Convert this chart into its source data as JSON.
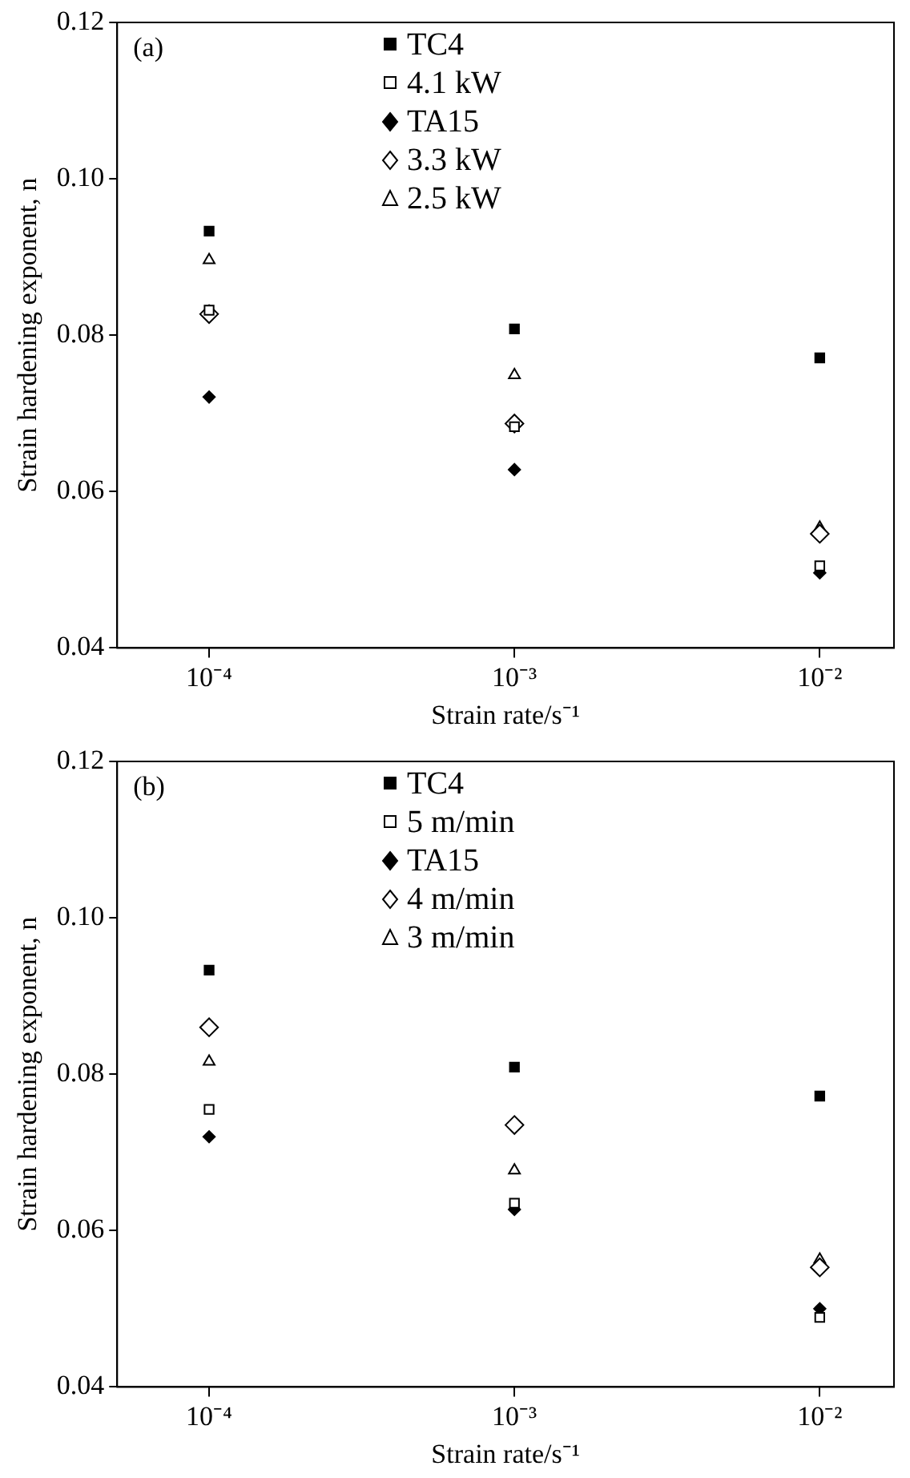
{
  "chart_data": [
    {
      "type": "scatter",
      "annotations": [
        "(a)"
      ],
      "xlabel": "Strain rate/s⁻¹",
      "ylabel": "Strain hardening exponent, n",
      "x": [
        0.0001,
        0.001,
        0.01
      ],
      "log": "x",
      "xlim": [
        5e-05,
        0.0175
      ],
      "xticks": [
        {
          "value": 0.0001,
          "label": "10⁻⁴"
        },
        {
          "value": 0.001,
          "label": "10⁻³"
        },
        {
          "value": 0.01,
          "label": "10⁻²"
        }
      ],
      "ylim": [
        0.04,
        0.12
      ],
      "yticks": [
        {
          "value": 0.04,
          "label": "0.04"
        },
        {
          "value": 0.06,
          "label": "0.06"
        },
        {
          "value": 0.08,
          "label": "0.08"
        },
        {
          "value": 0.1,
          "label": "0.10"
        },
        {
          "value": 0.12,
          "label": "0.12"
        }
      ],
      "grid": false,
      "legend": "top",
      "series": [
        {
          "name": "TC4",
          "color": "#000000",
          "marker": "square",
          "values": [
            0.0933,
            0.0808,
            0.0771
          ]
        },
        {
          "name": "4.1 kW",
          "color": "#000000",
          "marker": "square",
          "values": [
            0.0832,
            0.0683,
            0.0505
          ]
        },
        {
          "name": "TA15",
          "color": "#000000",
          "marker": "diamond",
          "values": [
            0.0721,
            0.0628,
            0.0496
          ]
        },
        {
          "name": "3.3 kW",
          "color": "#000000",
          "marker": "diamond",
          "values": [
            0.0827,
            0.0687,
            0.0546
          ]
        },
        {
          "name": "2.5 kW",
          "color": "#000000",
          "marker": "triangle",
          "values": [
            0.0896,
            0.0749,
            0.0554
          ]
        }
      ]
    },
    {
      "type": "scatter",
      "annotations": [
        "(b)"
      ],
      "xlabel": "Strain rate/s⁻¹",
      "ylabel": "Strain hardening exponent, n",
      "x": [
        0.0001,
        0.001,
        0.01
      ],
      "log": "x",
      "xlim": [
        5e-05,
        0.0175
      ],
      "xticks": [
        {
          "value": 0.0001,
          "label": "10⁻⁴"
        },
        {
          "value": 0.001,
          "label": "10⁻³"
        },
        {
          "value": 0.01,
          "label": "10⁻²"
        }
      ],
      "ylim": [
        0.04,
        0.12
      ],
      "yticks": [
        {
          "value": 0.04,
          "label": "0.04"
        },
        {
          "value": 0.06,
          "label": "0.06"
        },
        {
          "value": 0.08,
          "label": "0.08"
        },
        {
          "value": 0.1,
          "label": "0.10"
        },
        {
          "value": 0.12,
          "label": "0.12"
        }
      ],
      "grid": false,
      "legend": "top",
      "series": [
        {
          "name": "TC4",
          "color": "#000000",
          "marker": "square",
          "values": [
            0.0933,
            0.0809,
            0.0772
          ]
        },
        {
          "name": "5 m/min",
          "color": "#000000",
          "marker": "square",
          "values": [
            0.0755,
            0.0635,
            0.0489
          ]
        },
        {
          "name": "TA15",
          "color": "#000000",
          "marker": "diamond",
          "values": [
            0.072,
            0.0627,
            0.05
          ]
        },
        {
          "name": "4 m/min",
          "color": "#000000",
          "marker": "diamond",
          "values": [
            0.086,
            0.0735,
            0.0553
          ]
        },
        {
          "name": "3 m/min",
          "color": "#000000",
          "marker": "triangle",
          "values": [
            0.0816,
            0.0677,
            0.0563
          ]
        }
      ]
    }
  ]
}
